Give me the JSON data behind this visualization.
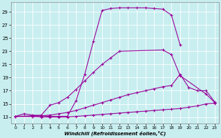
{
  "xlabel": "Windchill (Refroidissement éolien,°C)",
  "background_color": "#c8eef0",
  "grid_color": "#ffffff",
  "line_color": "#990099",
  "xlim": [
    -0.5,
    23.5
  ],
  "ylim": [
    12.0,
    30.5
  ],
  "yticks": [
    13,
    15,
    17,
    19,
    21,
    23,
    25,
    27,
    29
  ],
  "xticks": [
    0,
    1,
    2,
    3,
    4,
    5,
    6,
    7,
    8,
    9,
    10,
    11,
    12,
    13,
    14,
    15,
    16,
    17,
    18,
    19,
    20,
    21,
    22,
    23
  ],
  "curve1_x": [
    0,
    1,
    2,
    3,
    4,
    5,
    6,
    7,
    8,
    9,
    10,
    11,
    12,
    13,
    14,
    15,
    16,
    17,
    18,
    19
  ],
  "curve1_y": [
    13.1,
    13.5,
    13.3,
    13.2,
    13.1,
    13.1,
    13.1,
    15.5,
    19.5,
    24.5,
    29.2,
    29.5,
    29.6,
    29.6,
    29.6,
    29.6,
    29.5,
    29.4,
    28.5,
    24.0
  ],
  "curve2_x": [
    0,
    2,
    3,
    4,
    5,
    6,
    7,
    8,
    9,
    10,
    11,
    12,
    17,
    18,
    19,
    22,
    23
  ],
  "curve2_y": [
    13.1,
    13.2,
    13.3,
    14.8,
    15.2,
    16.0,
    17.2,
    18.5,
    19.8,
    21.0,
    22.0,
    23.0,
    23.2,
    22.5,
    19.3,
    16.5,
    15.2
  ],
  "curve3_x": [
    0,
    2,
    3,
    4,
    5,
    6,
    7,
    8,
    9,
    10,
    11,
    12,
    13,
    14,
    15,
    16,
    17,
    18,
    19,
    20,
    21,
    22,
    23
  ],
  "curve3_y": [
    13.1,
    13.1,
    13.2,
    13.3,
    13.5,
    13.7,
    14.0,
    14.4,
    14.8,
    15.2,
    15.6,
    16.0,
    16.4,
    16.7,
    17.0,
    17.3,
    17.6,
    17.8,
    19.5,
    17.5,
    17.0,
    17.0,
    15.3
  ],
  "curve4_x": [
    0,
    2,
    3,
    4,
    5,
    6,
    7,
    8,
    9,
    10,
    11,
    12,
    13,
    14,
    15,
    16,
    17,
    18,
    19,
    20,
    21,
    22,
    23
  ],
  "curve4_y": [
    13.1,
    13.1,
    13.0,
    13.0,
    13.0,
    13.0,
    13.1,
    13.2,
    13.3,
    13.4,
    13.5,
    13.6,
    13.7,
    13.8,
    13.9,
    14.0,
    14.1,
    14.2,
    14.3,
    14.5,
    14.7,
    15.0,
    15.1
  ]
}
